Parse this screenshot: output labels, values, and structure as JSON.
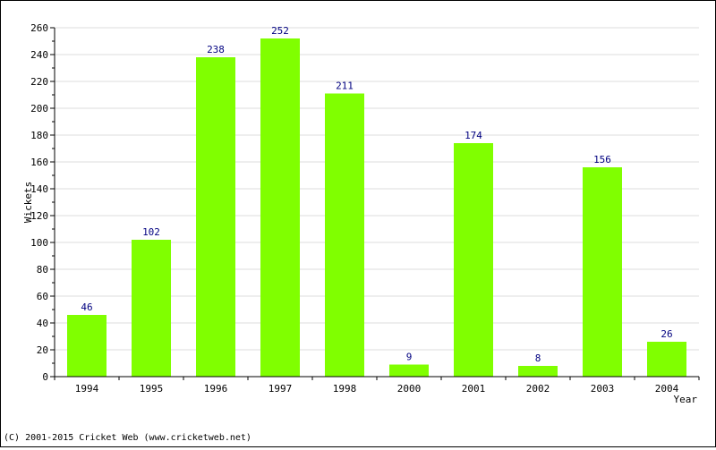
{
  "colors": {
    "bar": "#80ff00",
    "value_label": "#000080",
    "grid": "#dddddd",
    "axis": "#000000"
  },
  "footer": {
    "copyright": "(C) 2001-2015 Cricket Web (www.cricketweb.net)"
  },
  "chart_data": {
    "type": "bar",
    "title": "",
    "xlabel": "Year",
    "ylabel": "Wickets",
    "categories": [
      "1994",
      "1995",
      "1996",
      "1997",
      "1998",
      "2000",
      "2001",
      "2002",
      "2003",
      "2004"
    ],
    "values": [
      46,
      102,
      238,
      252,
      211,
      9,
      174,
      8,
      156,
      26
    ],
    "ylim": [
      0,
      260
    ],
    "yticks": [
      0,
      20,
      40,
      60,
      80,
      100,
      120,
      140,
      160,
      180,
      200,
      220,
      240,
      260
    ],
    "grid": true,
    "legend": "none"
  }
}
